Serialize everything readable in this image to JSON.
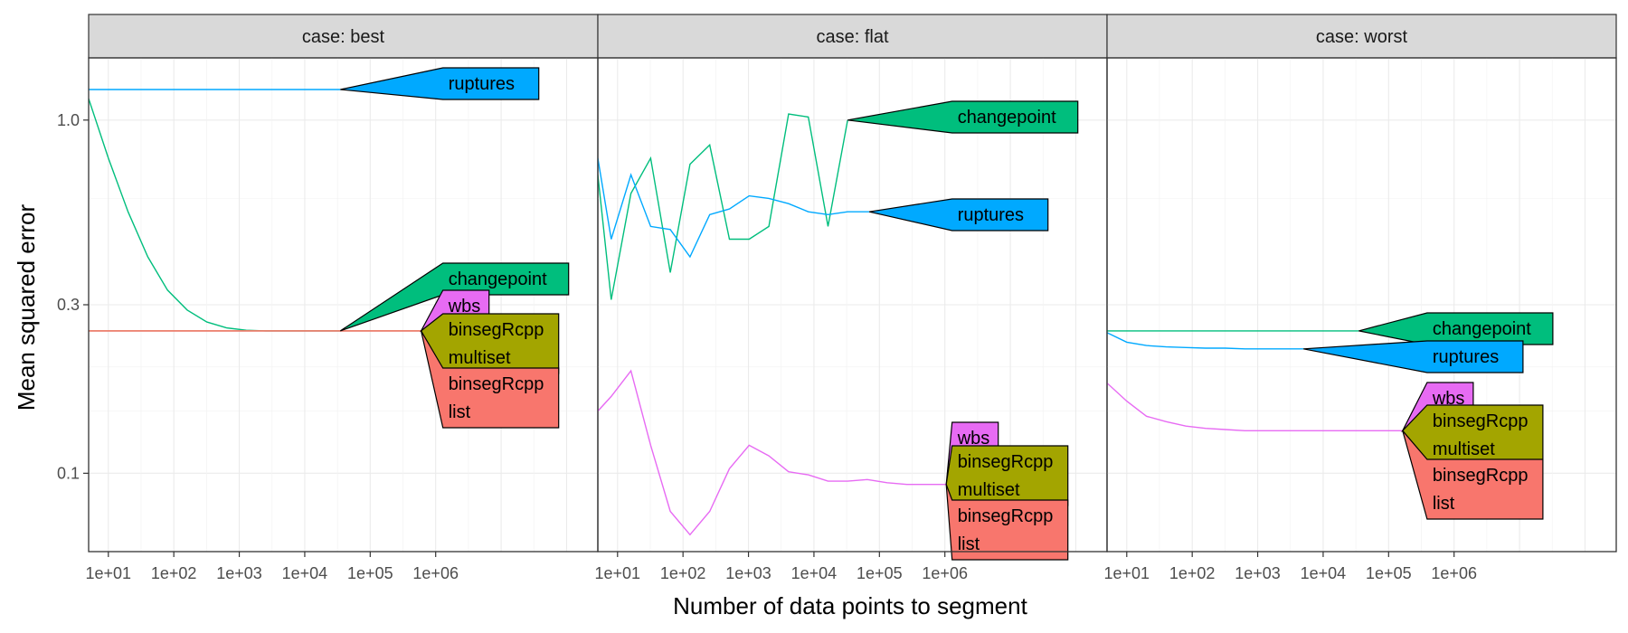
{
  "chart_data": {
    "type": "line",
    "xlabel": "Number of data points to segment",
    "ylabel": "Mean squared error",
    "x_scale": "log10",
    "y_scale": "log10",
    "xlim": [
      5,
      300000000
    ],
    "ylim": [
      0.06,
      1.5
    ],
    "x_ticks": [
      {
        "value": 10,
        "label": "1e+01"
      },
      {
        "value": 100,
        "label": "1e+02"
      },
      {
        "value": 1000,
        "label": "1e+03"
      },
      {
        "value": 10000,
        "label": "1e+04"
      },
      {
        "value": 100000,
        "label": "1e+05"
      },
      {
        "value": 1000000,
        "label": "1e+06"
      }
    ],
    "y_ticks": [
      {
        "value": 0.1,
        "label": "0.1"
      },
      {
        "value": 0.3,
        "label": "0.3"
      },
      {
        "value": 1.0,
        "label": "1.0"
      }
    ],
    "grid": true,
    "legend": "none (direct labels)",
    "colors": {
      "changepoint": "#00BE7D",
      "ruptures": "#00A9FF",
      "wbs": "#E76BF3",
      "binsegRcpp multiset": "#A3A500",
      "binsegRcpp list": "#F8766D"
    },
    "panels": [
      {
        "strip": "case: best",
        "series": [
          {
            "name": "ruptures",
            "x": [
              5,
              35000
            ],
            "y": [
              1.22,
              1.22
            ]
          },
          {
            "name": "changepoint",
            "x": [
              5,
              10,
              20,
              40,
              80,
              160,
              320,
              640,
              1280,
              2560,
              35000
            ],
            "y": [
              1.15,
              0.78,
              0.55,
              0.41,
              0.33,
              0.29,
              0.268,
              0.258,
              0.254,
              0.253,
              0.253
            ]
          },
          {
            "name": "wbs",
            "x": [
              5,
              600000
            ],
            "y": [
              0.253,
              0.253
            ]
          },
          {
            "name": "binsegRcpp multiset",
            "x": [
              5,
              600000
            ],
            "y": [
              0.253,
              0.253
            ]
          },
          {
            "name": "binsegRcpp list",
            "x": [
              5,
              600000
            ],
            "y": [
              0.253,
              0.253
            ]
          }
        ],
        "labels": [
          {
            "series": "ruptures",
            "lines": [
              "ruptures"
            ]
          },
          {
            "series": "changepoint",
            "lines": [
              "changepoint"
            ]
          },
          {
            "series": "wbs",
            "lines": [
              "wbs"
            ]
          },
          {
            "series": "binsegRcpp multiset",
            "lines": [
              "binsegRcpp",
              "multiset"
            ]
          },
          {
            "series": "binsegRcpp list",
            "lines": [
              "binsegRcpp",
              "list"
            ]
          }
        ]
      },
      {
        "strip": "case: flat",
        "series": [
          {
            "name": "changepoint",
            "x": [
              5,
              8,
              16,
              32,
              64,
              128,
              256,
              512,
              1024,
              2048,
              4096,
              8192,
              16384,
              32768
            ],
            "y": [
              0.7,
              0.31,
              0.62,
              0.78,
              0.37,
              0.75,
              0.85,
              0.46,
              0.46,
              0.5,
              1.04,
              1.02,
              0.5,
              1.0
            ]
          },
          {
            "name": "ruptures",
            "x": [
              5,
              8,
              16,
              32,
              64,
              128,
              256,
              512,
              1024,
              2048,
              4096,
              8192,
              16384,
              32768,
              70000
            ],
            "y": [
              0.78,
              0.46,
              0.7,
              0.5,
              0.49,
              0.41,
              0.54,
              0.56,
              0.61,
              0.6,
              0.58,
              0.55,
              0.54,
              0.55,
              0.55
            ]
          },
          {
            "name": "wbs",
            "x": [
              5,
              8,
              16,
              32,
              64,
              128,
              256,
              512,
              1024,
              2048,
              4096,
              8192,
              16384,
              32768,
              65536,
              131072,
              262144,
              524288,
              1048576
            ],
            "y": [
              0.15,
              0.165,
              0.195,
              0.12,
              0.078,
              0.067,
              0.078,
              0.103,
              0.12,
              0.112,
              0.101,
              0.099,
              0.095,
              0.095,
              0.096,
              0.094,
              0.093,
              0.093,
              0.093
            ]
          },
          {
            "name": "binsegRcpp multiset",
            "x": [
              1048576
            ],
            "y": [
              0.093
            ]
          },
          {
            "name": "binsegRcpp list",
            "x": [
              1048576
            ],
            "y": [
              0.093
            ]
          }
        ],
        "labels": [
          {
            "series": "changepoint",
            "lines": [
              "changepoint"
            ]
          },
          {
            "series": "ruptures",
            "lines": [
              "ruptures"
            ]
          },
          {
            "series": "wbs",
            "lines": [
              "wbs"
            ]
          },
          {
            "series": "binsegRcpp multiset",
            "lines": [
              "binsegRcpp",
              "multiset"
            ]
          },
          {
            "series": "binsegRcpp list",
            "lines": [
              "binsegRcpp",
              "list"
            ]
          }
        ]
      },
      {
        "strip": "case: worst",
        "series": [
          {
            "name": "changepoint",
            "x": [
              5,
              35000
            ],
            "y": [
              0.253,
              0.253
            ]
          },
          {
            "name": "ruptures",
            "x": [
              5,
              10,
              20,
              40,
              80,
              160,
              320,
              640,
              1280,
              2560,
              5000
            ],
            "y": [
              0.25,
              0.235,
              0.23,
              0.228,
              0.227,
              0.226,
              0.226,
              0.225,
              0.225,
              0.225,
              0.225
            ]
          },
          {
            "name": "wbs",
            "x": [
              5,
              10,
              20,
              40,
              80,
              160,
              320,
              640,
              1280,
              2560,
              5120,
              10240,
              20480,
              40960,
              81920,
              163840
            ],
            "y": [
              0.18,
              0.16,
              0.145,
              0.14,
              0.136,
              0.134,
              0.133,
              0.132,
              0.132,
              0.132,
              0.132,
              0.132,
              0.132,
              0.132,
              0.132,
              0.132
            ]
          },
          {
            "name": "binsegRcpp multiset",
            "x": [
              163840
            ],
            "y": [
              0.132
            ]
          },
          {
            "name": "binsegRcpp list",
            "x": [
              163840
            ],
            "y": [
              0.132
            ]
          }
        ],
        "labels": [
          {
            "series": "changepoint",
            "lines": [
              "changepoint"
            ]
          },
          {
            "series": "ruptures",
            "lines": [
              "ruptures"
            ]
          },
          {
            "series": "wbs",
            "lines": [
              "wbs"
            ]
          },
          {
            "series": "binsegRcpp multiset",
            "lines": [
              "binsegRcpp",
              "multiset"
            ]
          },
          {
            "series": "binsegRcpp list",
            "lines": [
              "binsegRcpp",
              "list"
            ]
          }
        ]
      }
    ]
  }
}
